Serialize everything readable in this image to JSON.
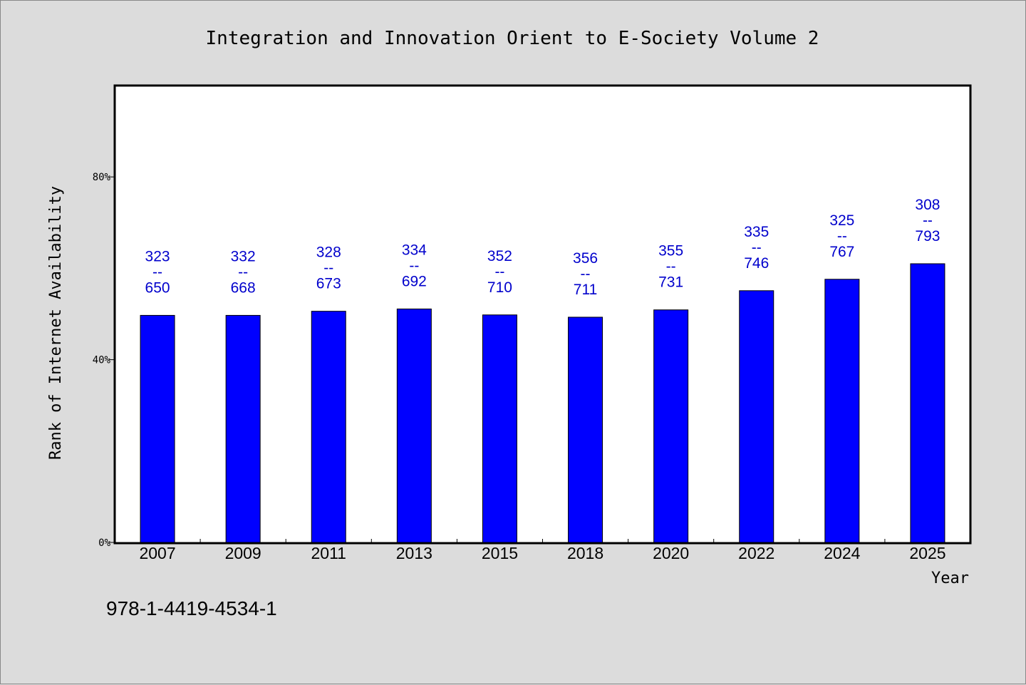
{
  "chart_data": {
    "type": "bar",
    "title": "Integration and Innovation Orient to E-Society Volume 2",
    "xlabel": "Year",
    "ylabel": "Rank of Internet Availability",
    "categories": [
      "2007",
      "2009",
      "2011",
      "2013",
      "2015",
      "2018",
      "2020",
      "2022",
      "2024",
      "2025"
    ],
    "values": [
      49.7,
      49.7,
      50.6,
      51.1,
      49.8,
      49.3,
      50.9,
      55.1,
      57.6,
      61.0
    ],
    "value_unit": "%",
    "rank_labels": [
      {
        "top": "323",
        "sep": "--",
        "bottom": "650"
      },
      {
        "top": "332",
        "sep": "--",
        "bottom": "668"
      },
      {
        "top": "328",
        "sep": "--",
        "bottom": "673"
      },
      {
        "top": "334",
        "sep": "--",
        "bottom": "692"
      },
      {
        "top": "352",
        "sep": "--",
        "bottom": "710"
      },
      {
        "top": "356",
        "sep": "--",
        "bottom": "711"
      },
      {
        "top": "355",
        "sep": "--",
        "bottom": "731"
      },
      {
        "top": "335",
        "sep": "--",
        "bottom": "746"
      },
      {
        "top": "325",
        "sep": "--",
        "bottom": "767"
      },
      {
        "top": "308",
        "sep": "--",
        "bottom": "793"
      }
    ],
    "ylim": [
      0,
      100
    ],
    "yticks": [
      0,
      40,
      80
    ],
    "ytick_labels": [
      "0%",
      "40%",
      "80%"
    ],
    "grid": false,
    "legend": "none",
    "colors": {
      "bar": "#0000ff",
      "label": "#0000cc",
      "plot_background": "#ffffff",
      "page_background": "#dcdcdc"
    }
  },
  "footer": {
    "isbn": "978-1-4419-4534-1"
  }
}
